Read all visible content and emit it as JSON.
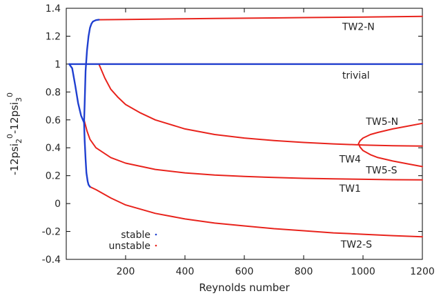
{
  "chart_data": {
    "type": "line",
    "xlabel": "Reynolds number",
    "ylabel_parts": [
      "-12psi",
      "2",
      "0",
      "-12psi",
      "3",
      "0"
    ],
    "xlim": [
      0,
      1200
    ],
    "ylim": [
      -0.4,
      1.4
    ],
    "x_ticks": [
      200,
      400,
      600,
      800,
      1000,
      1200
    ],
    "y_ticks": [
      -0.4,
      -0.2,
      0,
      0.2,
      0.4,
      0.6,
      0.8,
      1,
      1.2,
      1.4
    ],
    "grid": false,
    "legend": {
      "placement": "bottom-left",
      "entries": [
        {
          "label": "stable",
          "color": "#1f3fd0"
        },
        {
          "label": "unstable",
          "color": "#e8221b"
        }
      ]
    },
    "colors": {
      "stable": "#1f3fd0",
      "unstable": "#e8221b"
    },
    "annotations": [
      {
        "text": "TW2-N",
        "x": 930,
        "y": 1.27
      },
      {
        "text": "trivial",
        "x": 930,
        "y": 0.92
      },
      {
        "text": "TW5-N",
        "x": 1010,
        "y": 0.59
      },
      {
        "text": "TW4",
        "x": 920,
        "y": 0.32
      },
      {
        "text": "TW5-S",
        "x": 1010,
        "y": 0.24
      },
      {
        "text": "TW1",
        "x": 920,
        "y": 0.11
      },
      {
        "text": "TW2-S",
        "x": 925,
        "y": -0.29
      }
    ],
    "series": [
      {
        "key": "trivial_stable",
        "kind": "stable",
        "x": [
          10,
          1200
        ],
        "y": [
          1.0,
          1.0
        ]
      },
      {
        "key": "trivial",
        "kind": "unstable",
        "x": [
          60,
          1200
        ],
        "y": [
          1.0,
          1.0
        ]
      },
      {
        "key": "tw2n_stable",
        "kind": "stable",
        "x": [
          60,
          62,
          65,
          70,
          75,
          80,
          85,
          90,
          95,
          100,
          110
        ],
        "y": [
          0.58,
          0.72,
          0.95,
          1.1,
          1.2,
          1.26,
          1.29,
          1.305,
          1.31,
          1.315,
          1.318
        ]
      },
      {
        "key": "tw2n",
        "kind": "unstable",
        "x": [
          110,
          200,
          300,
          400,
          500,
          600,
          700,
          800,
          900,
          1000,
          1100,
          1200
        ],
        "y": [
          1.318,
          1.32,
          1.322,
          1.325,
          1.327,
          1.329,
          1.331,
          1.333,
          1.335,
          1.337,
          1.339,
          1.342
        ]
      },
      {
        "key": "tw_low_stable",
        "kind": "stable",
        "x": [
          10,
          20,
          30,
          40,
          50,
          60
        ],
        "y": [
          1.0,
          0.97,
          0.85,
          0.72,
          0.63,
          0.58
        ]
      },
      {
        "key": "tw1_stable",
        "kind": "stable",
        "x": [
          60,
          62,
          65,
          68,
          72,
          75,
          80
        ],
        "y": [
          0.58,
          0.45,
          0.32,
          0.22,
          0.16,
          0.135,
          0.12
        ]
      },
      {
        "key": "tw2s",
        "kind": "unstable",
        "x": [
          80,
          100,
          150,
          200,
          300,
          400,
          500,
          600,
          700,
          800,
          900,
          1000,
          1100,
          1200
        ],
        "y": [
          0.12,
          0.1,
          0.04,
          -0.01,
          -0.07,
          -0.11,
          -0.14,
          -0.16,
          -0.18,
          -0.195,
          -0.21,
          -0.22,
          -0.23,
          -0.238
        ]
      },
      {
        "key": "tw1",
        "kind": "unstable",
        "x": [
          60,
          70,
          80,
          100,
          150,
          200,
          300,
          400,
          500,
          600,
          700,
          800,
          900,
          1000,
          1100,
          1200
        ],
        "y": [
          0.6,
          0.52,
          0.46,
          0.4,
          0.33,
          0.29,
          0.245,
          0.22,
          0.205,
          0.195,
          0.187,
          0.181,
          0.177,
          0.174,
          0.171,
          0.17
        ]
      },
      {
        "key": "tw4",
        "kind": "unstable",
        "x": [
          110,
          120,
          130,
          150,
          175,
          200,
          250,
          300,
          400,
          500,
          600,
          700,
          800,
          900,
          1000,
          1100,
          1200
        ],
        "y": [
          1.0,
          0.95,
          0.9,
          0.82,
          0.76,
          0.71,
          0.65,
          0.6,
          0.535,
          0.495,
          0.47,
          0.452,
          0.438,
          0.428,
          0.42,
          0.415,
          0.412
        ]
      },
      {
        "key": "tw5n",
        "kind": "unstable",
        "x": [
          985,
          990,
          1000,
          1025,
          1050,
          1100,
          1150,
          1200
        ],
        "y": [
          0.43,
          0.45,
          0.47,
          0.495,
          0.51,
          0.535,
          0.555,
          0.575
        ]
      },
      {
        "key": "tw5s",
        "kind": "unstable",
        "x": [
          985,
          990,
          1000,
          1025,
          1050,
          1100,
          1150,
          1200
        ],
        "y": [
          0.43,
          0.405,
          0.38,
          0.35,
          0.33,
          0.305,
          0.285,
          0.265
        ]
      }
    ]
  }
}
